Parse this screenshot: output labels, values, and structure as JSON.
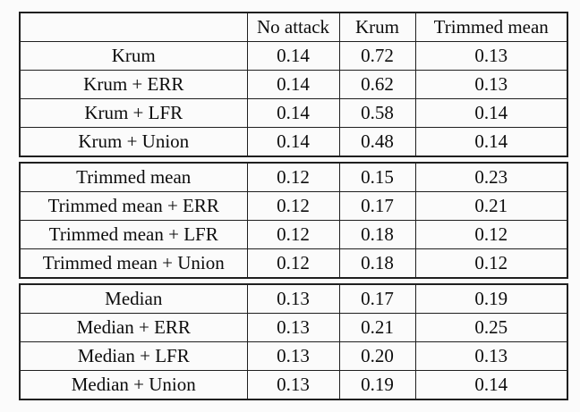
{
  "page": {
    "kind": "paper-results-table",
    "background_color": "#fbfbfb",
    "border_color": "#1f1f1f",
    "text_color": "#0d0d0d"
  },
  "table": {
    "corner_label": "",
    "columns": [
      "No attack",
      "Krum",
      "Trimmed mean"
    ],
    "sections": [
      {
        "name": "krum",
        "rows": [
          {
            "label": "Krum",
            "values": [
              "0.14",
              "0.72",
              "0.13"
            ]
          },
          {
            "label": "Krum + ERR",
            "values": [
              "0.14",
              "0.62",
              "0.13"
            ]
          },
          {
            "label": "Krum + LFR",
            "values": [
              "0.14",
              "0.58",
              "0.14"
            ]
          },
          {
            "label": "Krum + Union",
            "values": [
              "0.14",
              "0.48",
              "0.14"
            ]
          }
        ]
      },
      {
        "name": "trimmed-mean",
        "rows": [
          {
            "label": "Trimmed mean",
            "values": [
              "0.12",
              "0.15",
              "0.23"
            ]
          },
          {
            "label": "Trimmed mean + ERR",
            "values": [
              "0.12",
              "0.17",
              "0.21"
            ]
          },
          {
            "label": "Trimmed mean + LFR",
            "values": [
              "0.12",
              "0.18",
              "0.12"
            ]
          },
          {
            "label": "Trimmed mean + Union",
            "values": [
              "0.12",
              "0.18",
              "0.12"
            ]
          }
        ]
      },
      {
        "name": "median",
        "rows": [
          {
            "label": "Median",
            "values": [
              "0.13",
              "0.17",
              "0.19"
            ]
          },
          {
            "label": "Median + ERR",
            "values": [
              "0.13",
              "0.21",
              "0.25"
            ]
          },
          {
            "label": "Median + LFR",
            "values": [
              "0.13",
              "0.20",
              "0.13"
            ]
          },
          {
            "label": "Median + Union",
            "values": [
              "0.13",
              "0.19",
              "0.14"
            ]
          }
        ]
      }
    ]
  }
}
